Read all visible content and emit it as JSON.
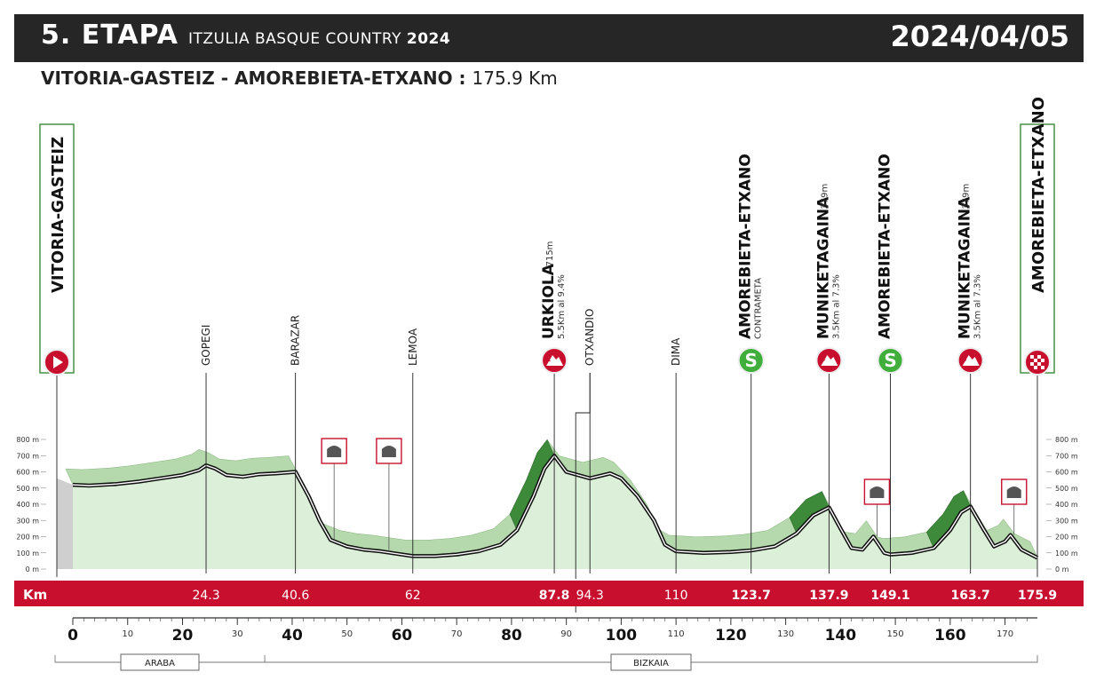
{
  "header": {
    "stage": "5. ETAPA",
    "race": "ITZULIA BASQUE COUNTRY",
    "year": "2024",
    "date": "2024/04/05"
  },
  "route": {
    "start": "VITORIA-GASTEIZ",
    "separator": " - ",
    "finish": "AMOREBIETA-ETXANO",
    "colon": " : ",
    "distance": "175.9 Km"
  },
  "chart_data": {
    "type": "area",
    "x_unit": "Km",
    "y_axis_ticks": [
      "800 m",
      "700 m",
      "600 m",
      "500 m",
      "400 m",
      "300 m",
      "200 m",
      "100 m",
      "0 m"
    ],
    "ylim": [
      0,
      800
    ],
    "xlim": [
      0,
      175.9
    ],
    "x_ticks_major": [
      "0",
      "20",
      "40",
      "60",
      "80",
      "100",
      "120",
      "140",
      "160"
    ],
    "x_ticks_minor": [
      "10",
      "30",
      "50",
      "70",
      "90",
      "110",
      "130",
      "150",
      "170"
    ],
    "profile": [
      [
        0,
        520
      ],
      [
        3,
        515
      ],
      [
        8,
        525
      ],
      [
        12,
        540
      ],
      [
        16,
        560
      ],
      [
        20,
        580
      ],
      [
        23,
        610
      ],
      [
        24.3,
        640
      ],
      [
        26,
        620
      ],
      [
        28,
        580
      ],
      [
        31,
        570
      ],
      [
        34,
        585
      ],
      [
        37,
        590
      ],
      [
        40.6,
        600
      ],
      [
        43,
        450
      ],
      [
        45,
        300
      ],
      [
        47,
        180
      ],
      [
        50,
        140
      ],
      [
        53,
        120
      ],
      [
        56,
        110
      ],
      [
        59,
        95
      ],
      [
        62,
        80
      ],
      [
        66,
        80
      ],
      [
        70,
        90
      ],
      [
        74,
        110
      ],
      [
        78,
        150
      ],
      [
        81,
        240
      ],
      [
        84,
        450
      ],
      [
        86,
        620
      ],
      [
        87.8,
        700
      ],
      [
        90,
        600
      ],
      [
        94.3,
        560
      ],
      [
        98,
        590
      ],
      [
        100,
        560
      ],
      [
        103,
        450
      ],
      [
        106,
        300
      ],
      [
        108,
        150
      ],
      [
        110,
        110
      ],
      [
        115,
        100
      ],
      [
        120,
        105
      ],
      [
        123.7,
        115
      ],
      [
        128,
        140
      ],
      [
        132,
        220
      ],
      [
        135,
        330
      ],
      [
        137.9,
        380
      ],
      [
        140,
        250
      ],
      [
        142,
        130
      ],
      [
        144,
        120
      ],
      [
        146,
        200
      ],
      [
        148,
        100
      ],
      [
        149.1,
        90
      ],
      [
        153,
        100
      ],
      [
        157,
        130
      ],
      [
        160,
        240
      ],
      [
        162,
        350
      ],
      [
        163.7,
        385
      ],
      [
        166,
        250
      ],
      [
        168,
        140
      ],
      [
        170,
        170
      ],
      [
        171,
        210
      ],
      [
        173,
        120
      ],
      [
        175.9,
        70
      ]
    ],
    "points": [
      {
        "name": "VITORIA-GASTEIZ",
        "km": "",
        "type": "start"
      },
      {
        "name": "GOPEGI",
        "km": "24.3",
        "type": "town"
      },
      {
        "name": "BARAZAR",
        "km": "40.6",
        "type": "town"
      },
      {
        "name": "LEMOA",
        "km": "62",
        "type": "town"
      },
      {
        "name": "URKIOLA",
        "detail_top": "715m",
        "detail": "5.5Km al 9.4%",
        "km": "87.8",
        "type": "climb",
        "category": "1"
      },
      {
        "name": "OTXANDIO",
        "km": "94.3",
        "type": "town"
      },
      {
        "name": "DIMA",
        "km": "110",
        "type": "town"
      },
      {
        "name": "AMOREBIETA-ETXANO",
        "detail": "CONTRAMETA",
        "km": "123.7",
        "type": "sprint"
      },
      {
        "name": "MUNIKETAGAINA",
        "detail_top": "379m",
        "detail": "3.5Km al 7.3%",
        "km": "137.9",
        "type": "climb",
        "category": "3"
      },
      {
        "name": "AMOREBIETA-ETXANO",
        "km": "149.1",
        "type": "sprint"
      },
      {
        "name": "MUNIKETAGAINA",
        "detail_top": "379m",
        "detail": "3.5Km al 7.3%",
        "km": "163.7",
        "type": "climb",
        "category": "3"
      },
      {
        "name": "AMOREBIETA-ETXANO",
        "km": "175.9",
        "type": "finish"
      }
    ],
    "km_bar_label": "Km",
    "sprint_symbol": "S",
    "tunnels_km": [
      47,
      57,
      146,
      171
    ],
    "regions": [
      "ARABA",
      "BIZKAIA"
    ],
    "colors": {
      "bar": "#c8102e",
      "fill": "#dcefd8",
      "climb": "#3d8a3a",
      "header": "#262626"
    }
  }
}
